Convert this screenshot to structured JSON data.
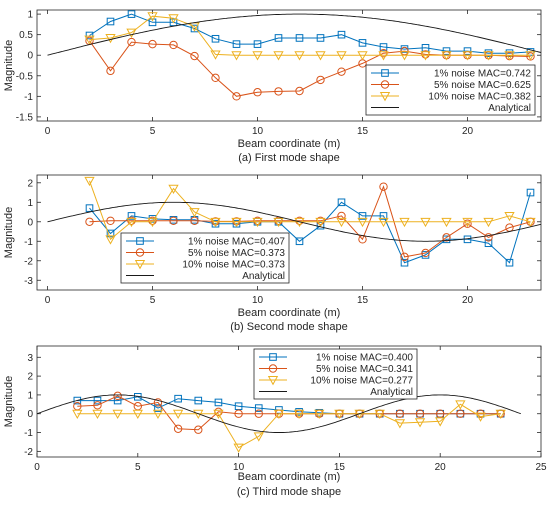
{
  "chart_data": [
    {
      "type": "line",
      "caption": "(a) First mode shape",
      "xlabel": "Beam coordinate (m)",
      "ylabel": "Magnitude",
      "xlim": [
        -0.5,
        23.5
      ],
      "ylim": [
        -1.6,
        1.1
      ],
      "xticks": [
        0,
        5,
        10,
        15,
        20
      ],
      "yticks": [
        -1.5,
        -1,
        -0.5,
        0,
        0.5,
        1
      ],
      "ytick_labels": [
        "-1.5",
        "-1",
        "-0.5",
        "0",
        "0.5",
        "1"
      ],
      "legend_position": "lower-right",
      "series": [
        {
          "name": "1% noise MAC=0.742",
          "color": "#0072BD",
          "marker": "square",
          "x": [
            2,
            3,
            4,
            5,
            6,
            7,
            8,
            9,
            10,
            11,
            12,
            13,
            14,
            15,
            16,
            17,
            18,
            19,
            20,
            21,
            22,
            23
          ],
          "y": [
            0.48,
            0.82,
            1.0,
            0.8,
            0.8,
            0.65,
            0.4,
            0.27,
            0.27,
            0.42,
            0.42,
            0.42,
            0.5,
            0.3,
            0.2,
            0.15,
            0.18,
            0.1,
            0.1,
            0.05,
            0.05,
            0.08
          ]
        },
        {
          "name": "5% noise MAC=0.625",
          "color": "#D95319",
          "marker": "circle",
          "x": [
            2,
            3,
            4,
            5,
            6,
            7,
            8,
            9,
            10,
            11,
            12,
            13,
            14,
            15,
            16,
            17,
            18,
            19,
            20,
            21,
            22,
            23
          ],
          "y": [
            0.35,
            -0.38,
            0.32,
            0.27,
            0.25,
            -0.02,
            -0.55,
            -1.0,
            -0.9,
            -0.88,
            -0.87,
            -0.6,
            -0.4,
            -0.2,
            0.05,
            0.1,
            0.02,
            0.0,
            0.0,
            0.0,
            -0.02,
            -0.03
          ]
        },
        {
          "name": "10% noise MAC=0.382",
          "color": "#EDB120",
          "marker": "triangle",
          "x": [
            2,
            3,
            4,
            5,
            6,
            7,
            8,
            9,
            10,
            11,
            12,
            13,
            14,
            15,
            16,
            17,
            18,
            19,
            20,
            21,
            22,
            23
          ],
          "y": [
            0.38,
            0.42,
            0.55,
            0.95,
            0.9,
            0.7,
            0.02,
            0.0,
            0.0,
            0.0,
            0.0,
            0.0,
            0.0,
            0.0,
            0.0,
            0.0,
            0.0,
            0.0,
            0.0,
            0.0,
            0.0,
            0.0
          ]
        },
        {
          "name": "Analytical",
          "color": "#1a1a1a",
          "marker": "none",
          "analytical": "sin",
          "amplitude": 1,
          "period_m": 48,
          "phase_m": 0,
          "x_range": [
            0,
            24
          ]
        }
      ]
    },
    {
      "type": "line",
      "caption": "(b) Second mode shape",
      "xlabel": "Beam coordinate (m)",
      "ylabel": "Magnitude",
      "xlim": [
        -0.5,
        23.5
      ],
      "ylim": [
        -3.5,
        2.4
      ],
      "xticks": [
        0,
        5,
        10,
        15,
        20
      ],
      "yticks": [
        -3,
        -2,
        -1,
        0,
        1,
        2
      ],
      "ytick_labels": [
        "-3",
        "-2",
        "-1",
        "0",
        "1",
        "2"
      ],
      "legend_position": "lower-left",
      "series": [
        {
          "name": "1% noise MAC=0.407",
          "color": "#0072BD",
          "marker": "square",
          "x": [
            2,
            3,
            4,
            5,
            6,
            7,
            8,
            9,
            10,
            11,
            12,
            13,
            14,
            15,
            16,
            17,
            18,
            19,
            20,
            21,
            22,
            23
          ],
          "y": [
            0.7,
            -0.6,
            0.3,
            0.15,
            0.1,
            0.1,
            -0.1,
            -0.1,
            0.0,
            0.0,
            -1.0,
            -0.2,
            1.0,
            0.3,
            0.3,
            -2.1,
            -1.7,
            -0.9,
            -0.9,
            -1.1,
            -2.1,
            1.5
          ]
        },
        {
          "name": "5% noise MAC=0.373",
          "color": "#D95319",
          "marker": "circle",
          "x": [
            2,
            3,
            4,
            5,
            6,
            7,
            8,
            9,
            10,
            11,
            12,
            13,
            14,
            15,
            16,
            17,
            18,
            19,
            20,
            21,
            22,
            23
          ],
          "y": [
            0.0,
            0.05,
            0.05,
            0.05,
            0.05,
            0.05,
            0.02,
            0.02,
            0.05,
            0.05,
            0.05,
            0.05,
            0.3,
            -0.9,
            1.8,
            -1.8,
            -1.6,
            -0.8,
            -0.1,
            -0.8,
            -0.3,
            0.0
          ]
        },
        {
          "name": "10% noise MAC=0.373",
          "color": "#EDB120",
          "marker": "triangle",
          "x": [
            2,
            3,
            4,
            5,
            6,
            7,
            8,
            9,
            10,
            11,
            12,
            13,
            14,
            15,
            16,
            17,
            18,
            19,
            20,
            21,
            22,
            23
          ],
          "y": [
            2.1,
            -0.9,
            0.0,
            0.0,
            1.7,
            0.5,
            0.0,
            0.0,
            0.0,
            0.0,
            0.0,
            0.0,
            0.0,
            0.0,
            0.0,
            0.0,
            0.0,
            0.0,
            0.0,
            0.0,
            0.3,
            0.0
          ]
        },
        {
          "name": "Analytical",
          "color": "#1a1a1a",
          "marker": "none",
          "analytical": "sin",
          "amplitude": 1,
          "period_m": 24,
          "phase_m": 0,
          "x_range": [
            0,
            24
          ]
        }
      ]
    },
    {
      "type": "line",
      "caption": "(c) Third mode shape",
      "xlabel": "Beam coordinate (m)",
      "ylabel": "Magnitude",
      "xlim": [
        0,
        25
      ],
      "ylim": [
        -2.3,
        3.6
      ],
      "xticks": [
        0,
        5,
        10,
        15,
        20,
        25
      ],
      "yticks": [
        -2,
        -1,
        0,
        1,
        2,
        3
      ],
      "ytick_labels": [
        "-2",
        "-1",
        "0",
        "1",
        "2",
        "3"
      ],
      "legend_position": "top-center",
      "series": [
        {
          "name": "1% noise MAC=0.400",
          "color": "#0072BD",
          "marker": "square",
          "x": [
            2,
            3,
            4,
            5,
            6,
            7,
            8,
            9,
            10,
            11,
            12,
            13,
            14,
            15,
            16,
            17,
            18,
            19,
            20,
            21,
            22,
            23
          ],
          "y": [
            0.7,
            0.7,
            0.7,
            0.9,
            0.3,
            0.8,
            0.7,
            0.6,
            0.4,
            0.3,
            0.2,
            0.1,
            0.05,
            0.0,
            0.0,
            0.0,
            0.0,
            0.0,
            0.0,
            0.0,
            0.0,
            0.0
          ]
        },
        {
          "name": "5% noise MAC=0.341",
          "color": "#D95319",
          "marker": "circle",
          "x": [
            2,
            3,
            4,
            5,
            6,
            7,
            8,
            9,
            10,
            11,
            12,
            13,
            14,
            15,
            16,
            17,
            18,
            19,
            20,
            21,
            22,
            23
          ],
          "y": [
            0.4,
            0.45,
            0.95,
            0.4,
            0.6,
            -0.8,
            -0.85,
            0.1,
            0.0,
            0.0,
            0.0,
            0.0,
            0.0,
            0.0,
            0.0,
            0.0,
            0.0,
            0.0,
            0.0,
            0.0,
            0.0,
            0.0
          ]
        },
        {
          "name": "10% noise MAC=0.277",
          "color": "#EDB120",
          "marker": "triangle",
          "x": [
            2,
            3,
            4,
            5,
            6,
            7,
            8,
            9,
            10,
            11,
            12,
            13,
            14,
            15,
            16,
            17,
            18,
            19,
            20,
            21,
            22,
            23
          ],
          "y": [
            0.0,
            0.0,
            0.0,
            0.0,
            0.0,
            0.0,
            0.0,
            0.0,
            -1.8,
            -1.2,
            0.0,
            0.0,
            0.0,
            0.0,
            0.0,
            0.0,
            -0.5,
            -0.45,
            -0.4,
            0.5,
            -0.15,
            0.0
          ]
        },
        {
          "name": "Analytical",
          "color": "#1a1a1a",
          "marker": "none",
          "analytical": "sin",
          "amplitude": 1,
          "period_m": 16,
          "phase_m": 0,
          "x_range": [
            0,
            24
          ]
        }
      ]
    }
  ]
}
